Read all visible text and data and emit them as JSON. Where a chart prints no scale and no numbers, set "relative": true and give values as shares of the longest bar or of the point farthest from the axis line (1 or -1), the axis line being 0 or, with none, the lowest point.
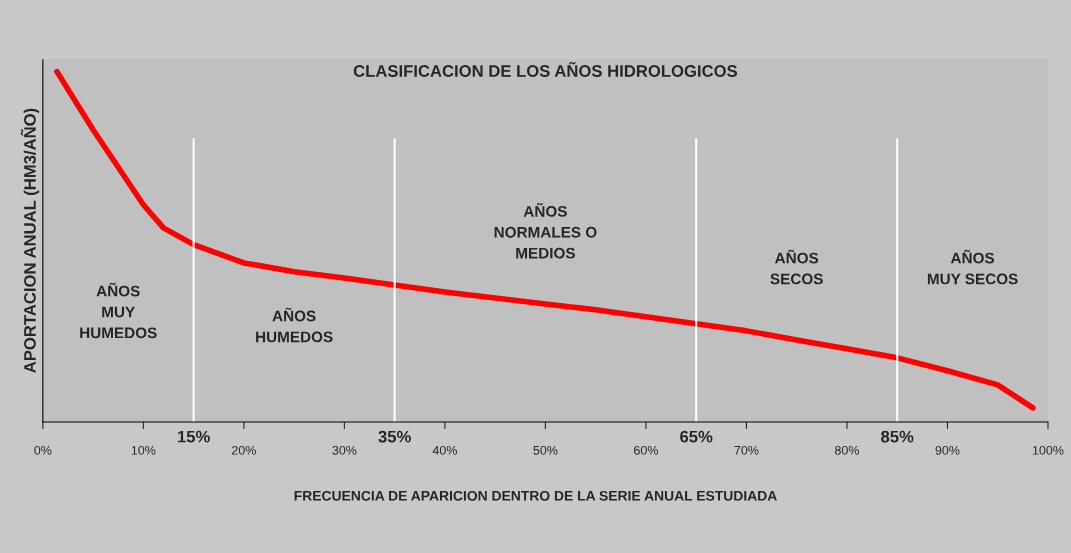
{
  "chart_data": {
    "type": "line",
    "title": "CLASIFICACION DE LOS AÑOS HIDROLOGICOS",
    "xlabel": "FRECUENCIA DE APARICION DENTRO DE LA SERIE ANUAL ESTUDIADA",
    "ylabel": "APORTACION ANUAL (HM3/AÑO)",
    "relative": true,
    "x": [
      1.4,
      5,
      10,
      12,
      15,
      20,
      25,
      30,
      35,
      40,
      45,
      50,
      55,
      60,
      65,
      70,
      75,
      80,
      85,
      90,
      95,
      98.5
    ],
    "series": [
      {
        "color": "#ff0000",
        "values": [
          1.0,
          0.834,
          0.62,
          0.554,
          0.506,
          0.454,
          0.429,
          0.411,
          0.391,
          0.371,
          0.354,
          0.337,
          0.32,
          0.3,
          0.28,
          0.26,
          0.234,
          0.209,
          0.183,
          0.146,
          0.106,
          0.04
        ]
      }
    ],
    "xlim": [
      0,
      100
    ],
    "xticks": [
      {
        "value": 0,
        "label": "0%"
      },
      {
        "value": 10,
        "label": "10%"
      },
      {
        "value": 20,
        "label": "20%"
      },
      {
        "value": 30,
        "label": "30%"
      },
      {
        "value": 40,
        "label": "40%"
      },
      {
        "value": 50,
        "label": "50%"
      },
      {
        "value": 60,
        "label": "60%"
      },
      {
        "value": 70,
        "label": "70%"
      },
      {
        "value": 80,
        "label": "80%"
      },
      {
        "value": 90,
        "label": "90%"
      },
      {
        "value": 100,
        "label": "100%"
      }
    ],
    "ref_lines": [
      {
        "axis": "x",
        "value": 15,
        "label": "15%",
        "color": "#ffffff"
      },
      {
        "axis": "x",
        "value": 35,
        "label": "35%",
        "color": "#ffffff"
      },
      {
        "axis": "x",
        "value": 65,
        "label": "65%",
        "color": "#ffffff"
      },
      {
        "axis": "x",
        "value": 85,
        "label": "85%",
        "color": "#ffffff"
      }
    ],
    "annotations": [
      "AÑOS\nMUY\nHUMEDOS",
      "AÑOS\nHUMEDOS",
      "AÑOS\nNORMALES O\nMEDIOS",
      "AÑOS\nSECOS",
      "AÑOS\nMUY SECOS"
    ],
    "grid": false,
    "legend": false,
    "marker": "none",
    "line_style": "solid"
  }
}
